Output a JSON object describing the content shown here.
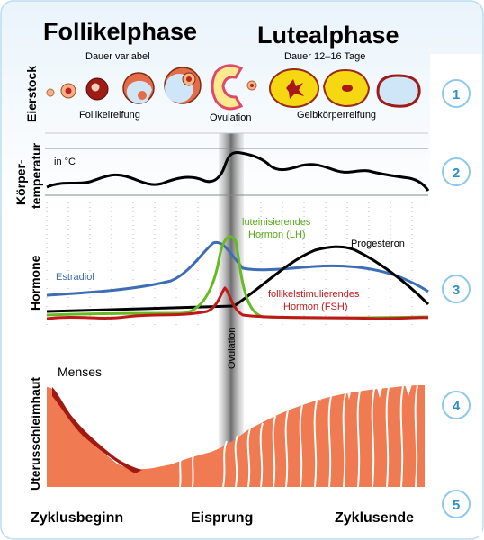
{
  "phases": {
    "follicular": {
      "title": "Follikelphase",
      "duration": "Dauer variabel"
    },
    "luteal": {
      "title": "Lutealphase",
      "duration": "Dauer 12–16 Tage"
    }
  },
  "rows": [
    {
      "label": "Eierstock",
      "number": "1"
    },
    {
      "label_line1": "Körper-",
      "label_line2": "temperatur",
      "number": "2"
    },
    {
      "label": "Hormone",
      "number": "3"
    },
    {
      "label": "Uterusschleimhaut",
      "number": "4"
    },
    {
      "number": "5"
    }
  ],
  "ovary": {
    "follicle_maturation": "Follikelreifung",
    "ovulation": "Ovulation",
    "corpus_luteum_maturation": "Gelbkörperreifung"
  },
  "temperature": {
    "unit": "in °C"
  },
  "hormones": {
    "lh_line1": "luteinisierendes",
    "lh_line2": "Hormon (LH)",
    "progesterone": "Progesteron",
    "estradiol": "Estradiol",
    "fsh_line1": "follikelstimulierendes",
    "fsh_line2": "Hormon (FSH)",
    "colors": {
      "lh": "#66bb22",
      "progesterone": "#000000",
      "estradiol": "#3d6db5",
      "fsh": "#c01818"
    }
  },
  "ovulation_band_label": "Ovulation",
  "endometrium": {
    "menses": "Menses",
    "color": "#f07a52"
  },
  "timeline": {
    "start": "Zyklusbeginn",
    "ovulation": "Eisprung",
    "end": "Zyklusende"
  }
}
